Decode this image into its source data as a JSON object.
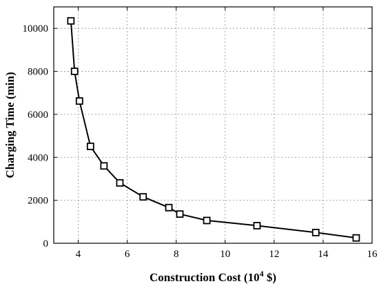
{
  "chart_data": {
    "type": "line",
    "xlabel_main": "Construction Cost (10",
    "xlabel_sup": "4",
    "xlabel_unit": " $)",
    "ylabel": "Charging Time (min)",
    "xlim": [
      3,
      16
    ],
    "ylim": [
      0,
      11000
    ],
    "xticks": [
      4,
      6,
      8,
      10,
      12,
      14,
      16
    ],
    "yticks": [
      0,
      2000,
      4000,
      6000,
      8000,
      10000
    ],
    "grid": true,
    "marker": "square",
    "series": [
      {
        "x": [
          3.7,
          3.85,
          4.05,
          4.5,
          5.05,
          5.7,
          6.65,
          7.7,
          8.15,
          9.25,
          11.3,
          13.7,
          15.35
        ],
        "y": [
          10350,
          8000,
          6620,
          4510,
          3600,
          2810,
          2160,
          1660,
          1360,
          1060,
          820,
          500,
          250
        ]
      }
    ]
  }
}
